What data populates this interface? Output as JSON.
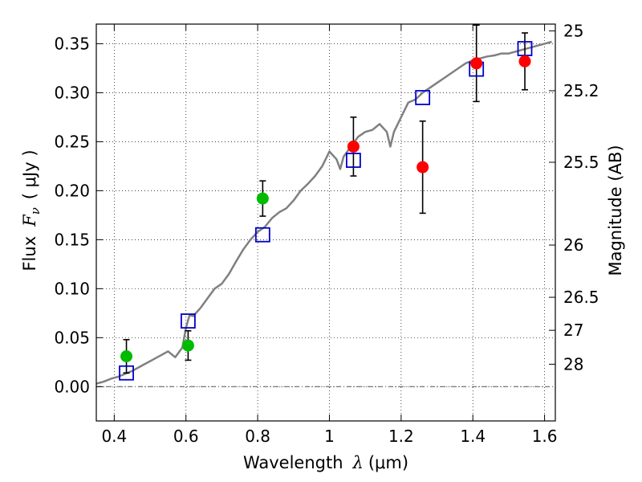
{
  "chart_data": {
    "type": "scatter",
    "xlabel_prefix": "Wavelength",
    "xlabel_symbol": "λ",
    "xlabel_unit": "(μm)",
    "ylabel_prefix": "Flux",
    "ylabel_symbol": "F",
    "ylabel_subscript": "ν",
    "ylabel_unit": "( μJy )",
    "y2label": "Magnitude (AB)",
    "xlim": [
      0.35,
      1.63
    ],
    "ylim": [
      -0.035,
      0.37
    ],
    "x_ticks": [
      0.4,
      0.6,
      0.8,
      1.0,
      1.2,
      1.4,
      1.6
    ],
    "x_tick_labels": [
      "0.4",
      "0.6",
      "0.8",
      "1",
      "1.2",
      "1.4",
      "1.6"
    ],
    "y_ticks": [
      0.0,
      0.05,
      0.1,
      0.15,
      0.2,
      0.25,
      0.3,
      0.35
    ],
    "y_tick_labels": [
      "0.00",
      "0.05",
      "0.10",
      "0.15",
      "0.20",
      "0.25",
      "0.30",
      "0.35"
    ],
    "mag_ticks": [
      {
        "label": "25",
        "flux": 0.3631
      },
      {
        "label": "25.2",
        "flux": 0.302
      },
      {
        "label": "25.5",
        "flux": 0.229
      },
      {
        "label": "26",
        "flux": 0.1445
      },
      {
        "label": "26.5",
        "flux": 0.0912
      },
      {
        "label": "27",
        "flux": 0.0575
      },
      {
        "label": "28",
        "flux": 0.0229
      }
    ],
    "grid": true,
    "colors": {
      "model": "#808080",
      "green": "#00bb00",
      "red": "#ff0000",
      "square": "#0000cc",
      "errorbar": "#000000"
    },
    "model_spectrum": {
      "x": [
        0.35,
        0.37,
        0.39,
        0.41,
        0.43,
        0.45,
        0.47,
        0.49,
        0.51,
        0.53,
        0.55,
        0.57,
        0.59,
        0.6,
        0.61,
        0.62,
        0.64,
        0.66,
        0.68,
        0.7,
        0.72,
        0.74,
        0.76,
        0.78,
        0.8,
        0.82,
        0.84,
        0.86,
        0.88,
        0.9,
        0.92,
        0.94,
        0.96,
        0.98,
        1.0,
        1.02,
        1.03,
        1.04,
        1.06,
        1.08,
        1.1,
        1.12,
        1.14,
        1.16,
        1.17,
        1.18,
        1.2,
        1.22,
        1.24,
        1.26,
        1.28,
        1.3,
        1.32,
        1.34,
        1.36,
        1.38,
        1.4,
        1.42,
        1.44,
        1.46,
        1.48,
        1.5,
        1.52,
        1.54,
        1.56,
        1.58,
        1.6,
        1.62
      ],
      "y": [
        0.003,
        0.005,
        0.008,
        0.01,
        0.013,
        0.016,
        0.02,
        0.024,
        0.028,
        0.032,
        0.036,
        0.03,
        0.04,
        0.06,
        0.073,
        0.072,
        0.08,
        0.09,
        0.1,
        0.105,
        0.115,
        0.128,
        0.14,
        0.15,
        0.158,
        0.163,
        0.172,
        0.178,
        0.182,
        0.19,
        0.2,
        0.207,
        0.215,
        0.225,
        0.24,
        0.232,
        0.222,
        0.235,
        0.245,
        0.255,
        0.26,
        0.262,
        0.268,
        0.26,
        0.245,
        0.26,
        0.275,
        0.29,
        0.293,
        0.3,
        0.305,
        0.31,
        0.315,
        0.32,
        0.325,
        0.33,
        0.333,
        0.335,
        0.337,
        0.338,
        0.34,
        0.34,
        0.342,
        0.344,
        0.346,
        0.348,
        0.35,
        0.352
      ]
    },
    "green_points": [
      {
        "x": 0.434,
        "y": 0.031,
        "err": 0.017
      },
      {
        "x": 0.606,
        "y": 0.042,
        "err": 0.015
      },
      {
        "x": 0.814,
        "y": 0.192,
        "err": 0.018
      }
    ],
    "red_points": [
      {
        "x": 1.067,
        "y": 0.245,
        "err": 0.03
      },
      {
        "x": 1.26,
        "y": 0.224,
        "err": 0.047
      },
      {
        "x": 1.41,
        "y": 0.33,
        "err": 0.039
      },
      {
        "x": 1.545,
        "y": 0.332,
        "err": 0.029
      }
    ],
    "square_points": [
      {
        "x": 0.434,
        "y": 0.014
      },
      {
        "x": 0.606,
        "y": 0.067
      },
      {
        "x": 0.814,
        "y": 0.155
      },
      {
        "x": 1.067,
        "y": 0.231
      },
      {
        "x": 1.26,
        "y": 0.295
      },
      {
        "x": 1.41,
        "y": 0.324
      },
      {
        "x": 1.545,
        "y": 0.345
      }
    ]
  }
}
